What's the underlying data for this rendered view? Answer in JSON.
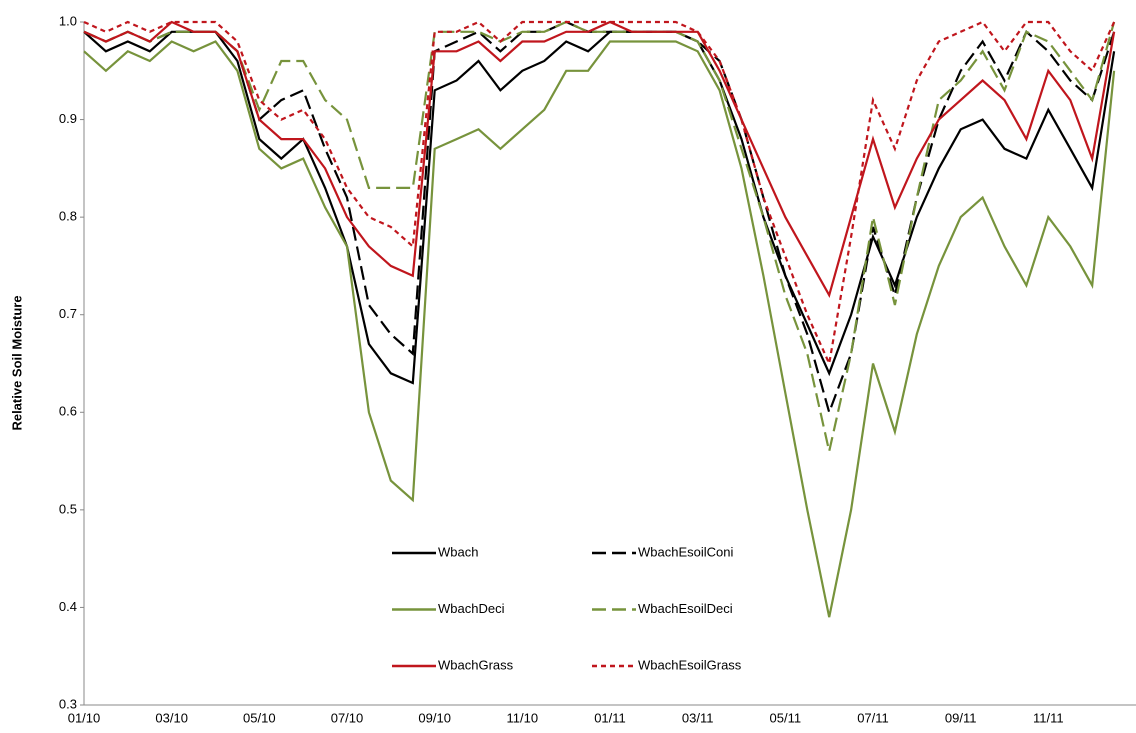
{
  "chart_data": {
    "type": "line",
    "y_label": "Relative Soil Moisture",
    "categories": [
      "01/10",
      null,
      null,
      null,
      "03/10",
      null,
      null,
      null,
      "05/10",
      null,
      null,
      null,
      "07/10",
      null,
      null,
      null,
      "09/10",
      null,
      null,
      null,
      "11/10",
      null,
      null,
      null,
      "01/11",
      null,
      null,
      null,
      "03/11",
      null,
      null,
      null,
      "05/11",
      null,
      null,
      null,
      "07/11",
      null,
      null,
      null,
      "09/11",
      null,
      null,
      null,
      "11/11",
      null,
      null,
      null
    ],
    "ylim": [
      0.3,
      {
        "value": 1,
        "label": "1.0"
      }
    ],
    "yticks": [
      0.3,
      0.4,
      0.5,
      0.6,
      0.7,
      0.8,
      0.9,
      {
        "value": 1,
        "label": "1.0"
      }
    ],
    "grid": false,
    "legend": "bottom-center",
    "series": [
      {
        "name": "Wbach",
        "color": "#000000",
        "style": "solid",
        "values": [
          0.99,
          0.97,
          0.98,
          0.97,
          0.99,
          0.99,
          0.99,
          0.96,
          0.88,
          0.86,
          0.88,
          0.83,
          0.77,
          0.67,
          0.64,
          0.63,
          0.93,
          0.94,
          0.96,
          0.93,
          0.95,
          0.96,
          0.98,
          0.97,
          0.99,
          0.99,
          0.99,
          0.99,
          0.98,
          0.94,
          0.88,
          0.8,
          0.74,
          0.69,
          0.64,
          0.7,
          0.78,
          0.73,
          0.8,
          0.85,
          0.89,
          0.9,
          0.87,
          0.86,
          0.91,
          0.87,
          0.83,
          0.97
        ]
      },
      {
        "name": "WbachEsoilConi",
        "color": "#000000",
        "style": "dashed",
        "values": [
          0.99,
          0.98,
          0.99,
          0.98,
          0.99,
          0.99,
          0.99,
          0.97,
          0.9,
          0.92,
          0.93,
          0.87,
          0.82,
          0.71,
          0.68,
          0.66,
          0.97,
          0.98,
          0.99,
          0.97,
          0.99,
          0.99,
          1.0,
          0.99,
          0.99,
          0.99,
          0.99,
          0.99,
          0.98,
          0.96,
          0.9,
          0.82,
          0.74,
          0.68,
          0.6,
          0.66,
          0.79,
          0.72,
          0.82,
          0.9,
          0.95,
          0.98,
          0.94,
          0.99,
          0.97,
          0.94,
          0.92,
          0.99
        ]
      },
      {
        "name": "WbachDeci",
        "color": "#77933c",
        "style": "solid",
        "values": [
          0.97,
          0.95,
          0.97,
          0.96,
          0.98,
          0.97,
          0.98,
          0.95,
          0.87,
          0.85,
          0.86,
          0.81,
          0.77,
          0.6,
          0.53,
          0.51,
          0.87,
          0.88,
          0.89,
          0.87,
          0.89,
          0.91,
          0.95,
          0.95,
          0.98,
          0.98,
          0.98,
          0.98,
          0.97,
          0.93,
          0.85,
          0.74,
          0.62,
          0.5,
          0.39,
          0.5,
          0.65,
          0.58,
          0.68,
          0.75,
          0.8,
          0.82,
          0.77,
          0.73,
          0.8,
          0.77,
          0.73,
          0.95
        ]
      },
      {
        "name": "WbachEsoilDeci",
        "color": "#77933c",
        "style": "dashed",
        "values": [
          0.99,
          0.98,
          0.99,
          0.98,
          0.99,
          0.99,
          0.99,
          0.97,
          0.91,
          0.96,
          0.96,
          0.92,
          0.9,
          0.83,
          0.83,
          0.83,
          0.99,
          0.99,
          0.99,
          0.98,
          0.99,
          0.99,
          1.0,
          0.99,
          0.99,
          0.99,
          0.99,
          0.99,
          0.98,
          0.94,
          0.87,
          0.8,
          0.72,
          0.66,
          0.56,
          0.66,
          0.8,
          0.71,
          0.82,
          0.92,
          0.94,
          0.97,
          0.93,
          0.99,
          0.98,
          0.95,
          0.92,
          1.0
        ]
      },
      {
        "name": "WbachGrass",
        "color": "#c0161d",
        "style": "solid",
        "values": [
          0.99,
          0.98,
          0.99,
          0.98,
          1.0,
          0.99,
          0.99,
          0.97,
          0.9,
          0.88,
          0.88,
          0.85,
          0.8,
          0.77,
          0.75,
          0.74,
          0.97,
          0.97,
          0.98,
          0.96,
          0.98,
          0.98,
          0.99,
          0.99,
          1.0,
          0.99,
          0.99,
          0.99,
          0.99,
          0.95,
          0.9,
          0.85,
          0.8,
          0.76,
          0.72,
          0.8,
          0.88,
          0.81,
          0.86,
          0.9,
          0.92,
          0.94,
          0.92,
          0.88,
          0.95,
          0.92,
          0.86,
          0.99
        ]
      },
      {
        "name": "WbachEsoilGrass",
        "color": "#c0161d",
        "style": "dotted",
        "values": [
          1.0,
          0.99,
          1.0,
          0.99,
          1.0,
          1.0,
          1.0,
          0.98,
          0.92,
          0.9,
          0.91,
          0.88,
          0.83,
          0.8,
          0.79,
          0.77,
          0.99,
          0.99,
          1.0,
          0.98,
          1.0,
          1.0,
          1.0,
          1.0,
          1.0,
          1.0,
          1.0,
          1.0,
          0.99,
          0.96,
          0.9,
          0.82,
          0.76,
          0.7,
          0.65,
          0.78,
          0.92,
          0.87,
          0.94,
          0.98,
          0.99,
          1.0,
          0.97,
          1.0,
          1.0,
          0.97,
          0.95,
          1.0
        ]
      }
    ]
  }
}
